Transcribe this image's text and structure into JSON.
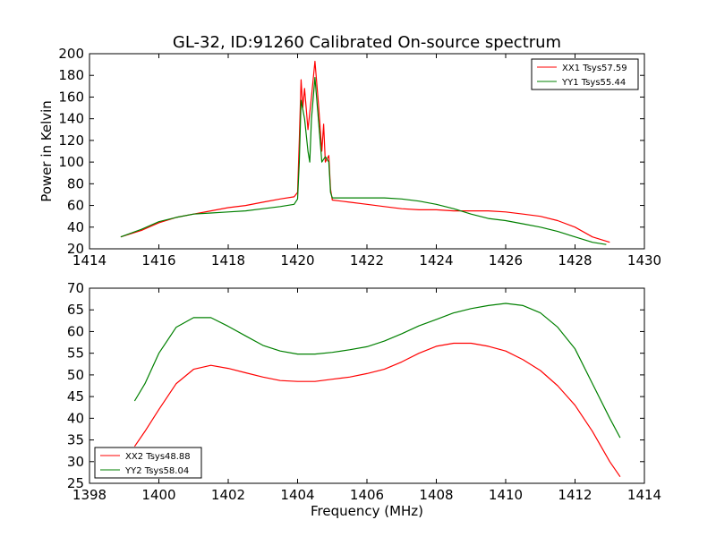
{
  "title": "GL-32, ID:91260 Calibrated On-source spectrum",
  "ylabel": "Power in Kelvin",
  "xlabel": "Frequency (MHz)",
  "chart_data": [
    {
      "type": "line",
      "xlim": [
        1414,
        1430
      ],
      "ylim": [
        20,
        200
      ],
      "xticks": [
        1414,
        1416,
        1418,
        1420,
        1422,
        1424,
        1426,
        1428,
        1430
      ],
      "yticks": [
        20,
        40,
        60,
        80,
        100,
        120,
        140,
        160,
        180,
        200
      ],
      "legend_position": "top-right",
      "grid": false,
      "series": [
        {
          "name": "XX1 Tsys57.59",
          "color": "#ff0000",
          "points": [
            [
              1414.9,
              31
            ],
            [
              1415.5,
              37
            ],
            [
              1416,
              44
            ],
            [
              1416.5,
              49
            ],
            [
              1417,
              52
            ],
            [
              1417.5,
              55
            ],
            [
              1418,
              58
            ],
            [
              1418.5,
              60
            ],
            [
              1419,
              63
            ],
            [
              1419.5,
              66
            ],
            [
              1419.9,
              68
            ],
            [
              1420.0,
              72
            ],
            [
              1420.05,
              120
            ],
            [
              1420.1,
              176
            ],
            [
              1420.15,
              150
            ],
            [
              1420.2,
              168
            ],
            [
              1420.3,
              130
            ],
            [
              1420.4,
              160
            ],
            [
              1420.5,
              193
            ],
            [
              1420.6,
              155
            ],
            [
              1420.7,
              110
            ],
            [
              1420.75,
              135
            ],
            [
              1420.8,
              100
            ],
            [
              1420.9,
              106
            ],
            [
              1420.95,
              75
            ],
            [
              1421,
              65
            ],
            [
              1421.5,
              63
            ],
            [
              1422,
              61
            ],
            [
              1422.5,
              59
            ],
            [
              1423,
              57
            ],
            [
              1423.5,
              56
            ],
            [
              1424,
              56
            ],
            [
              1424.5,
              55
            ],
            [
              1425,
              55
            ],
            [
              1425.5,
              55
            ],
            [
              1426,
              54
            ],
            [
              1426.5,
              52
            ],
            [
              1427,
              50
            ],
            [
              1427.5,
              46
            ],
            [
              1428,
              40
            ],
            [
              1428.5,
              31
            ],
            [
              1429,
              26
            ]
          ]
        },
        {
          "name": "YY1 Tsys55.44",
          "color": "#008000",
          "points": [
            [
              1414.9,
              31
            ],
            [
              1415.5,
              38
            ],
            [
              1416,
              45
            ],
            [
              1416.5,
              49
            ],
            [
              1417,
              52
            ],
            [
              1417.5,
              53
            ],
            [
              1418,
              54
            ],
            [
              1418.5,
              55
            ],
            [
              1419,
              57
            ],
            [
              1419.5,
              59
            ],
            [
              1419.9,
              61
            ],
            [
              1420.0,
              66
            ],
            [
              1420.05,
              100
            ],
            [
              1420.1,
              157
            ],
            [
              1420.2,
              140
            ],
            [
              1420.3,
              110
            ],
            [
              1420.35,
              100
            ],
            [
              1420.4,
              140
            ],
            [
              1420.5,
              178
            ],
            [
              1420.6,
              140
            ],
            [
              1420.7,
              100
            ],
            [
              1420.8,
              105
            ],
            [
              1420.9,
              100
            ],
            [
              1420.95,
              72
            ],
            [
              1421,
              67
            ],
            [
              1421.5,
              67
            ],
            [
              1422,
              67
            ],
            [
              1422.5,
              67
            ],
            [
              1423,
              66
            ],
            [
              1423.5,
              64
            ],
            [
              1424,
              61
            ],
            [
              1424.5,
              57
            ],
            [
              1425,
              52
            ],
            [
              1425.5,
              48
            ],
            [
              1426,
              46
            ],
            [
              1426.5,
              43
            ],
            [
              1427,
              40
            ],
            [
              1427.5,
              36
            ],
            [
              1428,
              31
            ],
            [
              1428.5,
              26
            ],
            [
              1428.9,
              24
            ]
          ]
        }
      ]
    },
    {
      "type": "line",
      "xlim": [
        1398,
        1414
      ],
      "ylim": [
        25,
        70
      ],
      "xticks": [
        1398,
        1400,
        1402,
        1404,
        1406,
        1408,
        1410,
        1412,
        1414
      ],
      "yticks": [
        25,
        30,
        35,
        40,
        45,
        50,
        55,
        60,
        65,
        70
      ],
      "legend_position": "bottom-left",
      "grid": false,
      "series": [
        {
          "name": "XX2 Tsys48.88",
          "color": "#ff0000",
          "points": [
            [
              1399.3,
              33.5
            ],
            [
              1399.6,
              37
            ],
            [
              1400,
              42
            ],
            [
              1400.5,
              48
            ],
            [
              1401,
              51.3
            ],
            [
              1401.5,
              52.2
            ],
            [
              1402,
              51.5
            ],
            [
              1402.5,
              50.5
            ],
            [
              1403,
              49.5
            ],
            [
              1403.5,
              48.7
            ],
            [
              1404,
              48.5
            ],
            [
              1404.5,
              48.5
            ],
            [
              1405,
              49
            ],
            [
              1405.5,
              49.5
            ],
            [
              1406,
              50.3
            ],
            [
              1406.5,
              51.3
            ],
            [
              1407,
              53
            ],
            [
              1407.5,
              55
            ],
            [
              1408,
              56.6
            ],
            [
              1408.5,
              57.3
            ],
            [
              1409,
              57.3
            ],
            [
              1409.5,
              56.6
            ],
            [
              1410,
              55.5
            ],
            [
              1410.5,
              53.5
            ],
            [
              1411,
              51
            ],
            [
              1411.5,
              47.5
            ],
            [
              1412,
              43
            ],
            [
              1412.5,
              37
            ],
            [
              1413,
              30
            ],
            [
              1413.3,
              26.5
            ]
          ]
        },
        {
          "name": "YY2 Tsys58.04",
          "color": "#008000",
          "points": [
            [
              1399.3,
              44
            ],
            [
              1399.6,
              48
            ],
            [
              1400,
              55
            ],
            [
              1400.5,
              61
            ],
            [
              1401,
              63.2
            ],
            [
              1401.5,
              63.2
            ],
            [
              1402,
              61.2
            ],
            [
              1402.5,
              59
            ],
            [
              1403,
              56.8
            ],
            [
              1403.5,
              55.5
            ],
            [
              1404,
              54.8
            ],
            [
              1404.5,
              54.8
            ],
            [
              1405,
              55.2
            ],
            [
              1405.5,
              55.8
            ],
            [
              1406,
              56.5
            ],
            [
              1406.5,
              57.8
            ],
            [
              1407,
              59.5
            ],
            [
              1407.5,
              61.3
            ],
            [
              1408,
              62.8
            ],
            [
              1408.5,
              64.3
            ],
            [
              1409,
              65.3
            ],
            [
              1409.5,
              66
            ],
            [
              1410,
              66.5
            ],
            [
              1410.5,
              66
            ],
            [
              1411,
              64.3
            ],
            [
              1411.5,
              61
            ],
            [
              1412,
              56
            ],
            [
              1412.5,
              48
            ],
            [
              1413,
              40
            ],
            [
              1413.3,
              35.5
            ]
          ]
        }
      ]
    }
  ]
}
